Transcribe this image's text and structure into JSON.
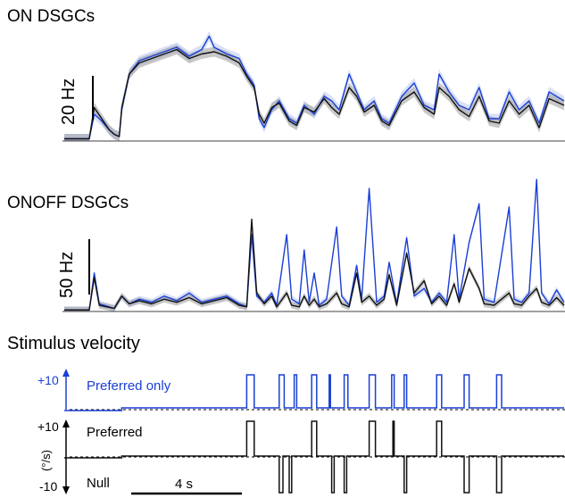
{
  "colors": {
    "preferred": "#1a3fd6",
    "control": "#111111",
    "error_band": "#9a9a9a",
    "blue_band": "#b9c8f2"
  },
  "chart_data": [
    {
      "type": "line",
      "title": "ON DSGCs",
      "scale_bar_label": "20 Hz",
      "time_range_s": [
        0,
        20
      ],
      "series": [
        {
          "color": "blue",
          "points": [
            [
              0,
              1
            ],
            [
              0.5,
              1
            ],
            [
              1,
              1
            ],
            [
              1.2,
              12
            ],
            [
              1.5,
              9
            ],
            [
              1.8,
              5
            ],
            [
              2,
              3
            ],
            [
              2.2,
              2
            ],
            [
              2.3,
              14
            ],
            [
              2.6,
              30
            ],
            [
              3,
              36
            ],
            [
              3.5,
              38
            ],
            [
              4,
              40
            ],
            [
              4.5,
              42
            ],
            [
              5,
              38
            ],
            [
              5.5,
              41
            ],
            [
              5.8,
              47
            ],
            [
              6,
              42
            ],
            [
              6.5,
              39
            ],
            [
              7,
              37
            ],
            [
              7.3,
              30
            ],
            [
              7.6,
              25
            ],
            [
              7.8,
              10
            ],
            [
              8,
              6
            ],
            [
              8.3,
              14
            ],
            [
              8.6,
              18
            ],
            [
              9,
              10
            ],
            [
              9.3,
              8
            ],
            [
              9.6,
              16
            ],
            [
              10,
              12
            ],
            [
              10.4,
              20
            ],
            [
              10.7,
              18
            ],
            [
              11,
              14
            ],
            [
              11.4,
              30
            ],
            [
              11.7,
              22
            ],
            [
              12,
              14
            ],
            [
              12.4,
              18
            ],
            [
              12.7,
              10
            ],
            [
              13,
              8
            ],
            [
              13.5,
              20
            ],
            [
              14,
              26
            ],
            [
              14.4,
              16
            ],
            [
              14.8,
              14
            ],
            [
              15,
              30
            ],
            [
              15.4,
              22
            ],
            [
              15.8,
              16
            ],
            [
              16.2,
              14
            ],
            [
              16.6,
              24
            ],
            [
              17,
              10
            ],
            [
              17.4,
              10
            ],
            [
              17.8,
              22
            ],
            [
              18.2,
              14
            ],
            [
              18.6,
              18
            ],
            [
              19,
              8
            ],
            [
              19.4,
              22
            ],
            [
              20,
              18
            ]
          ]
        },
        {
          "color": "black",
          "points": [
            [
              0,
              1
            ],
            [
              0.5,
              1
            ],
            [
              1,
              1
            ],
            [
              1.2,
              15
            ],
            [
              1.5,
              10
            ],
            [
              1.8,
              5
            ],
            [
              2,
              3
            ],
            [
              2.2,
              2
            ],
            [
              2.3,
              15
            ],
            [
              2.6,
              30
            ],
            [
              3,
              35
            ],
            [
              3.5,
              37
            ],
            [
              4,
              39
            ],
            [
              4.5,
              41
            ],
            [
              5,
              37
            ],
            [
              5.5,
              39
            ],
            [
              6,
              40
            ],
            [
              6.5,
              38
            ],
            [
              7,
              35
            ],
            [
              7.3,
              29
            ],
            [
              7.6,
              24
            ],
            [
              7.8,
              12
            ],
            [
              8,
              8
            ],
            [
              8.3,
              15
            ],
            [
              8.6,
              17
            ],
            [
              9,
              9
            ],
            [
              9.3,
              7
            ],
            [
              9.6,
              15
            ],
            [
              10,
              13
            ],
            [
              10.4,
              19
            ],
            [
              10.7,
              15
            ],
            [
              11,
              12
            ],
            [
              11.4,
              24
            ],
            [
              11.7,
              20
            ],
            [
              12,
              13
            ],
            [
              12.4,
              16
            ],
            [
              12.7,
              9
            ],
            [
              13,
              7
            ],
            [
              13.5,
              18
            ],
            [
              14,
              22
            ],
            [
              14.4,
              15
            ],
            [
              14.8,
              12
            ],
            [
              15,
              24
            ],
            [
              15.4,
              20
            ],
            [
              15.8,
              14
            ],
            [
              16.2,
              11
            ],
            [
              16.6,
              20
            ],
            [
              17,
              9
            ],
            [
              17.4,
              8
            ],
            [
              17.8,
              18
            ],
            [
              18.2,
              12
            ],
            [
              18.6,
              16
            ],
            [
              19,
              6
            ],
            [
              19.4,
              19
            ],
            [
              20,
              16
            ]
          ]
        }
      ]
    },
    {
      "type": "line",
      "title": "ONOFF DSGCs",
      "scale_bar_label": "50 Hz",
      "time_range_s": [
        0,
        20
      ],
      "series": [
        {
          "color": "blue",
          "points": [
            [
              0,
              1
            ],
            [
              1,
              1
            ],
            [
              1.2,
              25
            ],
            [
              1.4,
              5
            ],
            [
              2,
              2
            ],
            [
              2.3,
              10
            ],
            [
              2.6,
              5
            ],
            [
              3,
              8
            ],
            [
              3.5,
              6
            ],
            [
              4,
              10
            ],
            [
              4.5,
              7
            ],
            [
              5,
              12
            ],
            [
              5.5,
              6
            ],
            [
              6,
              8
            ],
            [
              6.5,
              10
            ],
            [
              7,
              5
            ],
            [
              7.3,
              3
            ],
            [
              7.5,
              50
            ],
            [
              7.7,
              10
            ],
            [
              8,
              6
            ],
            [
              8.3,
              12
            ],
            [
              8.5,
              4
            ],
            [
              8.9,
              50
            ],
            [
              9.1,
              8
            ],
            [
              9.4,
              5
            ],
            [
              9.6,
              40
            ],
            [
              9.8,
              6
            ],
            [
              10,
              25
            ],
            [
              10.2,
              4
            ],
            [
              10.5,
              8
            ],
            [
              10.9,
              55
            ],
            [
              11.1,
              10
            ],
            [
              11.4,
              4
            ],
            [
              11.7,
              30
            ],
            [
              11.9,
              8
            ],
            [
              12.2,
              80
            ],
            [
              12.5,
              6
            ],
            [
              12.8,
              10
            ],
            [
              13,
              32
            ],
            [
              13.3,
              5
            ],
            [
              13.7,
              48
            ],
            [
              14,
              10
            ],
            [
              14.4,
              15
            ],
            [
              14.7,
              6
            ],
            [
              15,
              12
            ],
            [
              15.3,
              6
            ],
            [
              15.6,
              50
            ],
            [
              15.8,
              8
            ],
            [
              16.2,
              45
            ],
            [
              16.6,
              70
            ],
            [
              16.8,
              8
            ],
            [
              17.2,
              6
            ],
            [
              17.8,
              68
            ],
            [
              18,
              8
            ],
            [
              18.3,
              6
            ],
            [
              18.6,
              12
            ],
            [
              18.9,
              86
            ],
            [
              19.1,
              12
            ],
            [
              19.4,
              5
            ],
            [
              19.7,
              14
            ],
            [
              20,
              6
            ]
          ]
        },
        {
          "color": "black",
          "points": [
            [
              0,
              1
            ],
            [
              1,
              1
            ],
            [
              1.2,
              22
            ],
            [
              1.4,
              4
            ],
            [
              2,
              2
            ],
            [
              2.3,
              10
            ],
            [
              2.6,
              5
            ],
            [
              3,
              7
            ],
            [
              3.5,
              5
            ],
            [
              4,
              8
            ],
            [
              4.5,
              6
            ],
            [
              5,
              9
            ],
            [
              5.5,
              5
            ],
            [
              6,
              7
            ],
            [
              6.5,
              9
            ],
            [
              7,
              4
            ],
            [
              7.3,
              3
            ],
            [
              7.5,
              60
            ],
            [
              7.7,
              12
            ],
            [
              8,
              5
            ],
            [
              8.3,
              10
            ],
            [
              8.5,
              3
            ],
            [
              8.9,
              12
            ],
            [
              9.1,
              4
            ],
            [
              9.4,
              3
            ],
            [
              9.6,
              10
            ],
            [
              9.8,
              4
            ],
            [
              10,
              8
            ],
            [
              10.2,
              3
            ],
            [
              10.5,
              5
            ],
            [
              10.9,
              12
            ],
            [
              11.1,
              5
            ],
            [
              11.4,
              3
            ],
            [
              11.7,
              25
            ],
            [
              11.9,
              6
            ],
            [
              12.2,
              10
            ],
            [
              12.5,
              4
            ],
            [
              12.8,
              8
            ],
            [
              13,
              24
            ],
            [
              13.3,
              4
            ],
            [
              13.7,
              38
            ],
            [
              14,
              12
            ],
            [
              14.4,
              20
            ],
            [
              14.7,
              5
            ],
            [
              15,
              10
            ],
            [
              15.3,
              4
            ],
            [
              15.6,
              18
            ],
            [
              15.8,
              6
            ],
            [
              16.2,
              28
            ],
            [
              16.6,
              15
            ],
            [
              16.8,
              5
            ],
            [
              17.2,
              4
            ],
            [
              17.8,
              12
            ],
            [
              18,
              5
            ],
            [
              18.3,
              4
            ],
            [
              18.6,
              10
            ],
            [
              18.9,
              15
            ],
            [
              19.1,
              6
            ],
            [
              19.4,
              4
            ],
            [
              19.7,
              9
            ],
            [
              20,
              4
            ]
          ]
        }
      ]
    },
    {
      "type": "line",
      "title": "Stimulus velocity",
      "ylabel": "(°/s)",
      "yticks": [
        "+10",
        "+10",
        "-10"
      ],
      "legend": [
        "Preferred only",
        "Preferred",
        "Null"
      ],
      "scale_bar_label": "4 s",
      "scale_bar_seconds": 4,
      "time_range_s": [
        0,
        20
      ],
      "preferred_only_pulses": [
        [
          7.3,
          7.6
        ],
        [
          8.6,
          8.8
        ],
        [
          9.2,
          9.3
        ],
        [
          9.9,
          10.1
        ],
        [
          10.6,
          10.65
        ],
        [
          11.2,
          11.35
        ],
        [
          12.2,
          12.45
        ],
        [
          13.1,
          13.2
        ],
        [
          13.6,
          13.7
        ],
        [
          14.9,
          15.1
        ],
        [
          16.0,
          16.2
        ],
        [
          17.3,
          17.5
        ]
      ],
      "preferred_null_pulses": [
        {
          "sign": 1,
          "t": [
            7.3,
            7.6
          ]
        },
        {
          "sign": -1,
          "t": [
            8.6,
            8.75
          ]
        },
        {
          "sign": -1,
          "t": [
            9.0,
            9.1
          ]
        },
        {
          "sign": 1,
          "t": [
            9.9,
            10.1
          ]
        },
        {
          "sign": -1,
          "t": [
            10.7,
            10.8
          ]
        },
        {
          "sign": -1,
          "t": [
            11.2,
            11.3
          ]
        },
        {
          "sign": 1,
          "t": [
            12.2,
            12.45
          ]
        },
        {
          "sign": 1,
          "t": [
            13.15,
            13.2
          ]
        },
        {
          "sign": -1,
          "t": [
            13.6,
            13.7
          ]
        },
        {
          "sign": 1,
          "t": [
            14.9,
            15.1
          ]
        },
        {
          "sign": -1,
          "t": [
            16.0,
            16.2
          ]
        },
        {
          "sign": -1,
          "t": [
            17.3,
            17.5
          ]
        }
      ]
    }
  ]
}
